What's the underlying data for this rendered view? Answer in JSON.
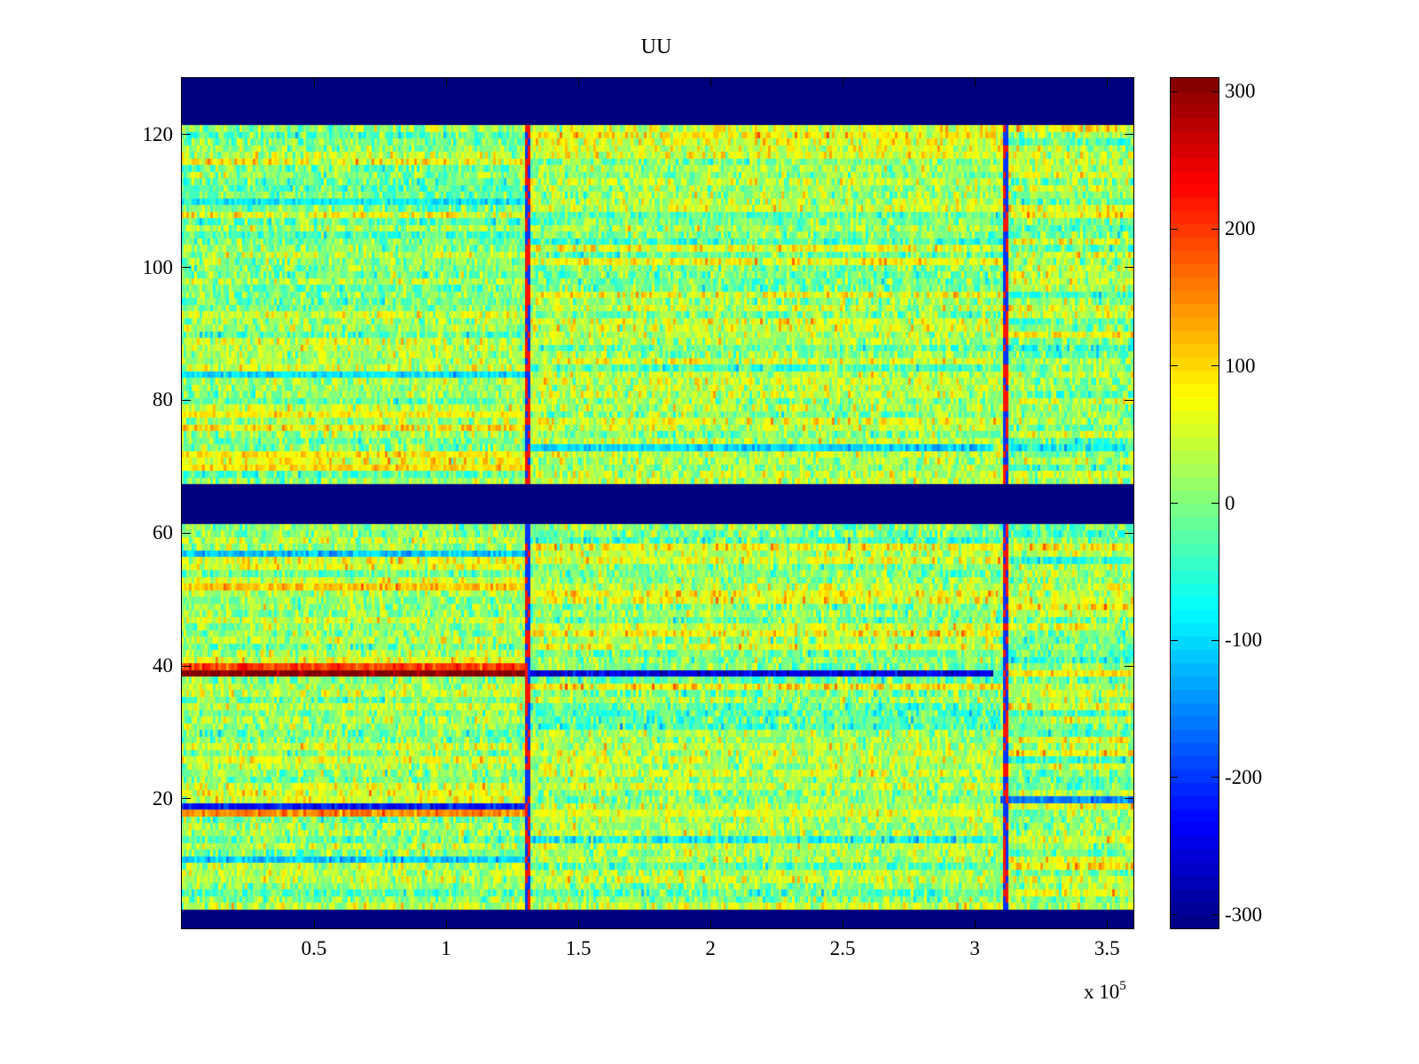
{
  "chart_data": {
    "type": "heatmap",
    "title": "UU",
    "xlabel": "",
    "ylabel": "",
    "x_multiplier": "x 10",
    "x_multiplier_exp": "5",
    "xlim": [
      0,
      3.6
    ],
    "ylim": [
      0.5,
      128.5
    ],
    "xticks": [
      0.5,
      1,
      1.5,
      2,
      2.5,
      3,
      3.5
    ],
    "xtick_labels": [
      "0.5",
      "1",
      "1.5",
      "2",
      "2.5",
      "3",
      "3.5"
    ],
    "yticks": [
      20,
      40,
      60,
      80,
      100,
      120
    ],
    "ytick_labels": [
      "20",
      "40",
      "60",
      "80",
      "100",
      "120"
    ],
    "colormap": "jet",
    "clim": [
      -310,
      310
    ],
    "colorbar_ticks": [
      300,
      200,
      100,
      0,
      -100,
      -200,
      -300
    ],
    "colorbar_tick_labels": [
      "300",
      "200",
      "100",
      "0",
      "-100",
      "-200",
      "-300"
    ],
    "n_rows": 128,
    "empty_rows": [
      [
        1,
        3
      ],
      [
        62,
        67
      ],
      [
        122,
        128
      ]
    ],
    "segment_breaks": [
      1.31,
      3.12
    ],
    "background_mean": 20,
    "noise_std": 40,
    "features": [
      {
        "row": 39,
        "x_range": [
          0,
          1.3
        ],
        "value": 310
      },
      {
        "row": 40,
        "x_range": [
          0,
          1.3
        ],
        "value": 200
      },
      {
        "row": 39,
        "x_range": [
          1.32,
          3.07
        ],
        "value": -250
      },
      {
        "row": 39,
        "x_range": [
          3.12,
          3.6
        ],
        "value": 90
      },
      {
        "row": 19,
        "x_range": [
          0,
          1.3
        ],
        "value": -220
      },
      {
        "row": 18,
        "x_range": [
          0,
          1.3
        ],
        "value": 150
      },
      {
        "row": 20,
        "x_range": [
          3.1,
          3.6
        ],
        "value": -160
      },
      {
        "row": 18,
        "x_range": [
          1.32,
          3.07
        ],
        "value": 60
      },
      {
        "row": 52,
        "x_range": [
          0,
          1.3
        ],
        "value": 110
      },
      {
        "row": 57,
        "x_range": [
          0,
          1.3
        ],
        "value": -110
      },
      {
        "row": 11,
        "x_range": [
          0,
          1.3
        ],
        "value": -110
      },
      {
        "row": 73,
        "x_range": [
          1.32,
          3.07
        ],
        "value": -100
      },
      {
        "row": 72,
        "x_range": [
          0,
          1.3
        ],
        "value": 90
      },
      {
        "row": 70,
        "x_range": [
          0,
          1.3
        ],
        "value": 100
      },
      {
        "row": 84,
        "x_range": [
          0,
          1.3
        ],
        "value": -90
      },
      {
        "row": 78,
        "x_range": [
          0,
          1.3
        ],
        "value": 80
      },
      {
        "row": 110,
        "x_range": [
          0,
          1.3
        ],
        "value": -80
      }
    ]
  }
}
